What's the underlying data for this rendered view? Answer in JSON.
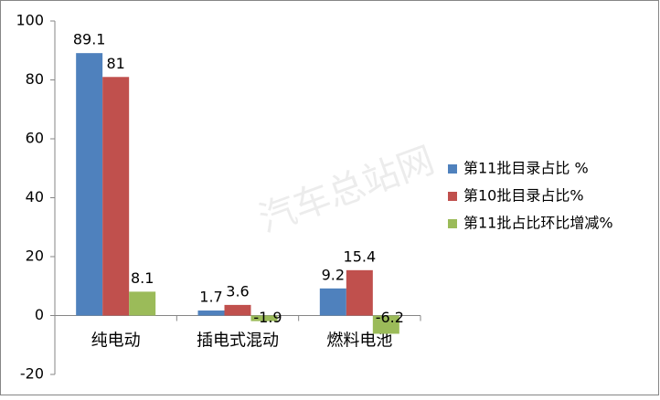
{
  "chart_data": {
    "type": "bar",
    "categories": [
      "纯电动",
      "插电式混动",
      "燃料电池"
    ],
    "series": [
      {
        "name": "第11批目录占比 %",
        "color": "#4f81bd",
        "values": [
          89.1,
          1.7,
          9.2
        ]
      },
      {
        "name": "第10批目录占比%",
        "color": "#c0504d",
        "values": [
          81,
          3.6,
          15.4
        ]
      },
      {
        "name": "第11批占比环比增减%",
        "color": "#9bbb59",
        "values": [
          8.1,
          -1.9,
          -6.2
        ]
      }
    ],
    "ylim": [
      -20,
      100
    ],
    "yticks": [
      -20,
      0,
      20,
      40,
      60,
      80,
      100
    ],
    "grid": false,
    "legend": "right",
    "watermark": "汽车总站网"
  }
}
